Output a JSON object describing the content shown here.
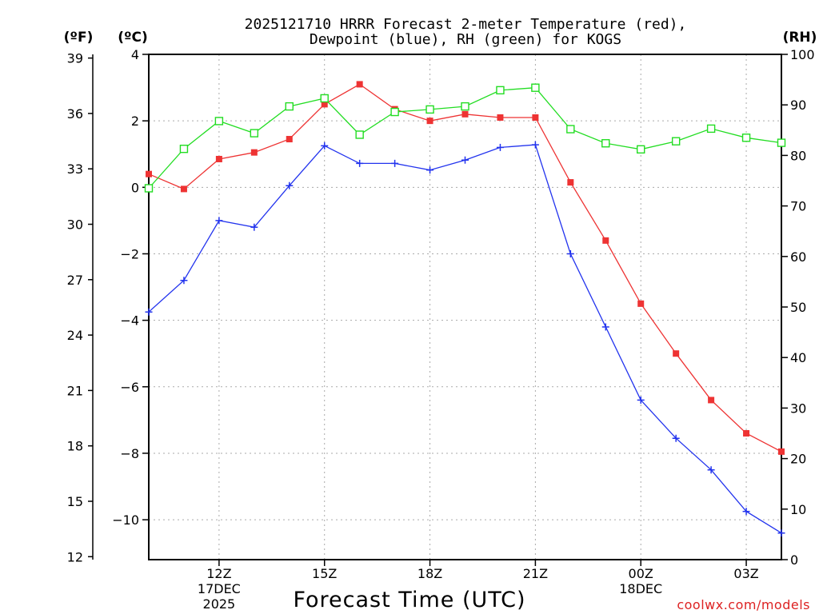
{
  "chart_data": {
    "type": "line",
    "title_line1": "2025121710 HRRR Forecast 2-meter Temperature (red),",
    "title_line2": "Dewpoint (blue), RH (green) for KOGS",
    "xlabel": "Forecast Time (UTC)",
    "unit_f": "(ºF)",
    "unit_c": "(ºC)",
    "unit_rh": "(RH)",
    "watermark": "coolwx.com/models",
    "x_hours": [
      0,
      1,
      2,
      3,
      4,
      5,
      6,
      7,
      8,
      9,
      10,
      11,
      12,
      13,
      14,
      15,
      16,
      17,
      18
    ],
    "xlim": [
      0,
      18
    ],
    "x_ticks": [
      {
        "x": 2,
        "label": "12Z",
        "sub1": "17DEC",
        "sub2": "2025"
      },
      {
        "x": 5,
        "label": "15Z",
        "sub1": "",
        "sub2": ""
      },
      {
        "x": 8,
        "label": "18Z",
        "sub1": "",
        "sub2": ""
      },
      {
        "x": 11,
        "label": "21Z",
        "sub1": "",
        "sub2": ""
      },
      {
        "x": 14,
        "label": "00Z",
        "sub1": "18DEC",
        "sub2": ""
      },
      {
        "x": 17,
        "label": "03Z",
        "sub1": "",
        "sub2": ""
      }
    ],
    "ylim_c": [
      -11.2,
      4
    ],
    "y_ticks_c": [
      {
        "v": 4,
        "label": "4"
      },
      {
        "v": 2,
        "label": "2"
      },
      {
        "v": 0,
        "label": "0"
      },
      {
        "v": -2,
        "label": "−2"
      },
      {
        "v": -4,
        "label": "−4"
      },
      {
        "v": -6,
        "label": "−6"
      },
      {
        "v": -8,
        "label": "−8"
      },
      {
        "v": -10,
        "label": "−10"
      }
    ],
    "ylim_rh": [
      0,
      100
    ],
    "y_ticks_rh": [
      "0",
      "10",
      "20",
      "30",
      "40",
      "50",
      "60",
      "70",
      "80",
      "90",
      "100"
    ],
    "y_ticks_f": [
      "12",
      "15",
      "18",
      "21",
      "24",
      "27",
      "30",
      "33",
      "36",
      "39"
    ],
    "series": [
      {
        "name": "Temperature",
        "unit": "C",
        "color": "#ee3333",
        "values": [
          0.4,
          -0.05,
          0.85,
          1.05,
          1.45,
          2.5,
          3.1,
          2.35,
          2.0,
          2.2,
          2.1,
          2.1,
          0.15,
          -1.6,
          -3.5,
          -5.0,
          -6.4,
          -7.4,
          -7.95
        ]
      },
      {
        "name": "Dewpoint",
        "unit": "C",
        "color": "#2233ee",
        "values": [
          -3.75,
          -2.8,
          -1.0,
          -1.2,
          0.05,
          1.25,
          0.72,
          0.72,
          0.52,
          0.82,
          1.2,
          1.28,
          -2.0,
          -4.2,
          -6.4,
          -7.55,
          -8.5,
          -9.75,
          -10.4
        ]
      },
      {
        "name": "RH",
        "unit": "%",
        "color": "#22dd22",
        "values": [
          73.5,
          81.3,
          86.8,
          84.4,
          89.7,
          91.3,
          84.1,
          88.6,
          89.1,
          89.7,
          92.9,
          93.4,
          85.2,
          82.4,
          81.2,
          82.8,
          85.3,
          83.5,
          82.5
        ]
      }
    ]
  }
}
